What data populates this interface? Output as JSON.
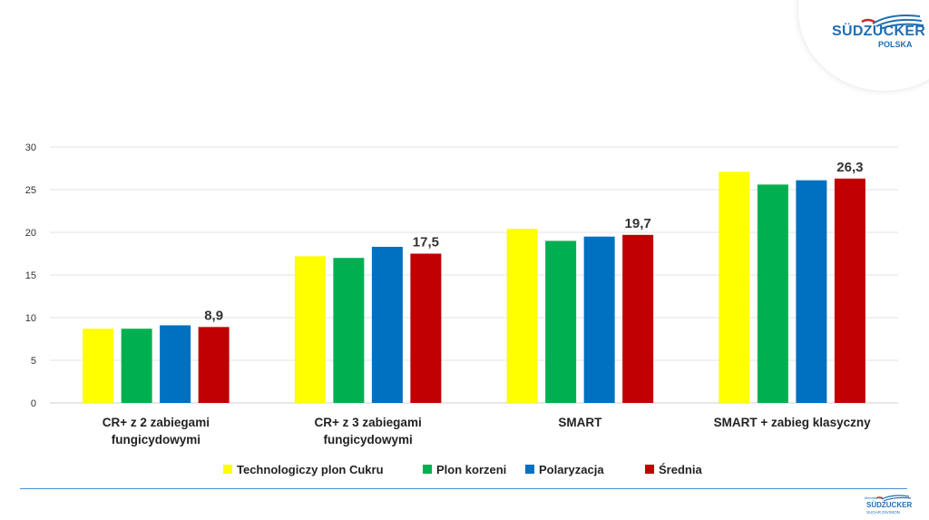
{
  "logo": {
    "name": "SÜDZUCKER",
    "sub": "POLSKA"
  },
  "footer_logo": {
    "member": "Member of",
    "name": "SÜDZUCKER",
    "division": "SUGAR DIVISION"
  },
  "colors": {
    "yellow": "#ffff00",
    "green": "#00b050",
    "blue": "#0070c0",
    "red": "#c00000",
    "grid": "#e3e3e3",
    "brand_blue": "#1f6fb5"
  },
  "chart_data": {
    "type": "bar",
    "categories": [
      [
        "CR+ z 2 zabiegami",
        "fungicydowymi"
      ],
      [
        "CR+ z 3 zabiegami",
        "fungicydowymi"
      ],
      [
        "SMART"
      ],
      [
        "SMART + zabieg klasyczny"
      ]
    ],
    "series": [
      {
        "name": "Technologiczy plon Cukru",
        "color": "#ffff00",
        "values": [
          8.7,
          17.2,
          20.4,
          27.1
        ]
      },
      {
        "name": "Plon korzeni",
        "color": "#00b050",
        "values": [
          8.7,
          17.0,
          19.0,
          25.6
        ]
      },
      {
        "name": "Polaryzacja",
        "color": "#0070c0",
        "values": [
          9.1,
          18.3,
          19.5,
          26.1
        ]
      },
      {
        "name": "Średnia",
        "color": "#c00000",
        "values": [
          8.9,
          17.5,
          19.7,
          26.3
        ]
      }
    ],
    "data_labels": [
      "8,9",
      "17,5",
      "19,7",
      "26,3"
    ],
    "data_label_series": 3,
    "yticks": [
      "0",
      "5",
      "10",
      "15",
      "20",
      "25",
      "30"
    ],
    "ylim": [
      0,
      30
    ],
    "grid": true,
    "legend_position": "bottom",
    "title": "",
    "xlabel": "",
    "ylabel": ""
  }
}
